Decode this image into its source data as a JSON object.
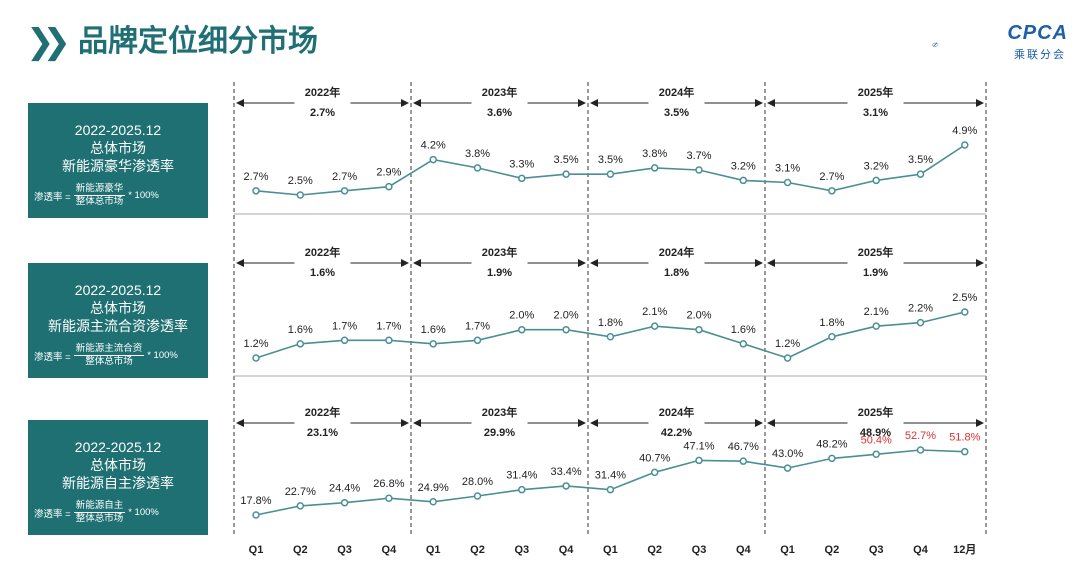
{
  "header": {
    "title": "品牌定位细分市场",
    "logo_text": "CPCA",
    "logo_sub": "乘联分会"
  },
  "colors": {
    "line": "#4a8f95",
    "highlight": "#e03030",
    "box": "#1f7072"
  },
  "panels": [
    {
      "box": {
        "line1": "2022-2025.12",
        "line2": "总体市场",
        "line3": "新能源豪华渗透率",
        "formula_prefix": "渗透率 =",
        "numerator": "新能源豪华",
        "denominator": "整体总市场",
        "formula_suffix": "* 100%"
      }
    },
    {
      "box": {
        "line1": "2022-2025.12",
        "line2": "总体市场",
        "line3": "新能源主流合资渗透率",
        "formula_prefix": "渗透率 =",
        "numerator": "新能源主流合资",
        "denominator": "整体总市场",
        "formula_suffix": "* 100%"
      }
    },
    {
      "box": {
        "line1": "2022-2025.12",
        "line2": "总体市场",
        "line3": "新能源自主渗透率",
        "formula_prefix": "渗透率 =",
        "numerator": "新能源自主",
        "denominator": "整体总市场",
        "formula_suffix": "* 100%"
      }
    }
  ],
  "chart_data": [
    {
      "type": "line",
      "title": "新能源豪华渗透率",
      "categories": [
        "Q1",
        "Q2",
        "Q3",
        "Q4",
        "Q1",
        "Q2",
        "Q3",
        "Q4",
        "Q1",
        "Q2",
        "Q3",
        "Q4",
        "Q1",
        "Q2",
        "Q3",
        "Q4",
        "12月"
      ],
      "values": [
        2.7,
        2.5,
        2.7,
        2.9,
        4.2,
        3.8,
        3.3,
        3.5,
        3.5,
        3.8,
        3.7,
        3.2,
        3.1,
        2.7,
        3.2,
        3.5,
        4.9
      ],
      "labels": [
        "2.7%",
        "2.5%",
        "2.7%",
        "2.9%",
        "4.2%",
        "3.8%",
        "3.3%",
        "3.5%",
        "3.5%",
        "3.8%",
        "3.7%",
        "3.2%",
        "3.1%",
        "2.7%",
        "3.2%",
        "3.5%",
        "4.9%"
      ],
      "highlight": [],
      "years": [
        {
          "year": "2022年",
          "value": "2.7%"
        },
        {
          "year": "2023年",
          "value": "3.6%"
        },
        {
          "year": "2024年",
          "value": "3.5%"
        },
        {
          "year": "2025年",
          "value": "3.1%"
        }
      ]
    },
    {
      "type": "line",
      "title": "新能源主流合资渗透率",
      "categories": [
        "Q1",
        "Q2",
        "Q3",
        "Q4",
        "Q1",
        "Q2",
        "Q3",
        "Q4",
        "Q1",
        "Q2",
        "Q3",
        "Q4",
        "Q1",
        "Q2",
        "Q3",
        "Q4",
        "12月"
      ],
      "values": [
        1.2,
        1.6,
        1.7,
        1.7,
        1.6,
        1.7,
        2.0,
        2.0,
        1.8,
        2.1,
        2.0,
        1.6,
        1.2,
        1.8,
        2.1,
        2.2,
        2.5
      ],
      "labels": [
        "1.2%",
        "1.6%",
        "1.7%",
        "1.7%",
        "1.6%",
        "1.7%",
        "2.0%",
        "2.0%",
        "1.8%",
        "2.1%",
        "2.0%",
        "1.6%",
        "1.2%",
        "1.8%",
        "2.1%",
        "2.2%",
        "2.5%"
      ],
      "highlight": [],
      "years": [
        {
          "year": "2022年",
          "value": "1.6%"
        },
        {
          "year": "2023年",
          "value": "1.9%"
        },
        {
          "year": "2024年",
          "value": "1.8%"
        },
        {
          "year": "2025年",
          "value": "1.9%"
        }
      ]
    },
    {
      "type": "line",
      "title": "新能源自主渗透率",
      "categories": [
        "Q1",
        "Q2",
        "Q3",
        "Q4",
        "Q1",
        "Q2",
        "Q3",
        "Q4",
        "Q1",
        "Q2",
        "Q3",
        "Q4",
        "Q1",
        "Q2",
        "Q3",
        "Q4",
        "12月"
      ],
      "values": [
        17.8,
        22.7,
        24.4,
        26.8,
        24.9,
        28.0,
        31.4,
        33.4,
        31.4,
        40.7,
        47.1,
        46.7,
        43.0,
        48.2,
        50.4,
        52.7,
        51.8
      ],
      "labels": [
        "17.8%",
        "22.7%",
        "24.4%",
        "26.8%",
        "24.9%",
        "28.0%",
        "31.4%",
        "33.4%",
        "31.4%",
        "40.7%",
        "47.1%",
        "46.7%",
        "43.0%",
        "48.2%",
        "50.4%",
        "52.7%",
        "51.8%"
      ],
      "highlight": [
        14,
        15,
        16
      ],
      "years": [
        {
          "year": "2022年",
          "value": "23.1%"
        },
        {
          "year": "2023年",
          "value": "29.9%"
        },
        {
          "year": "2024年",
          "value": "42.2%"
        },
        {
          "year": "2025年",
          "value": "48.9%"
        }
      ]
    }
  ]
}
